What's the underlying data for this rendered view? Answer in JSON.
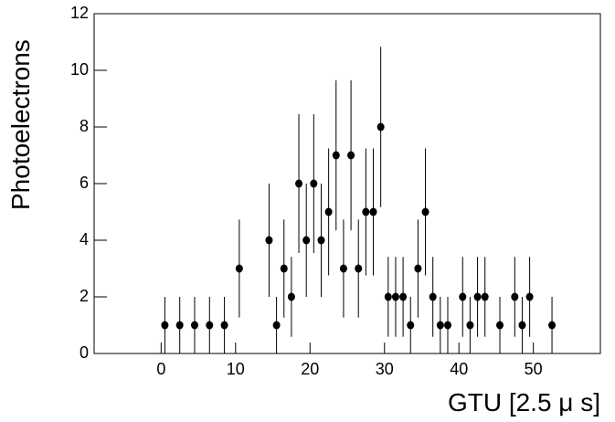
{
  "chart_data": {
    "type": "scatter",
    "x_label": "GTU [2.5 μ s]",
    "y_label": "Photoelectrons",
    "x": [
      0.5,
      2.5,
      4.5,
      6.5,
      8.5,
      10.5,
      14.5,
      15.5,
      16.5,
      17.5,
      18.5,
      19.5,
      20.5,
      21.5,
      22.5,
      23.5,
      24.5,
      25.5,
      26.5,
      27.5,
      28.5,
      29.5,
      30.5,
      31.5,
      32.5,
      33.5,
      34.5,
      35.5,
      36.5,
      37.5,
      38.5,
      40.5,
      41.5,
      42.5,
      43.5,
      45.5,
      47.5,
      48.5,
      49.5,
      52.5
    ],
    "series": [
      {
        "color": "#000000",
        "values": [
          1,
          1,
          1,
          1,
          1,
          3,
          4,
          1,
          3,
          2,
          6,
          4,
          6,
          4,
          5,
          7,
          3,
          7,
          3,
          5,
          5,
          8,
          2,
          2,
          2,
          1,
          3,
          5,
          2,
          1,
          1,
          2,
          1,
          2,
          2,
          1,
          2,
          1,
          2,
          1
        ],
        "errors": [
          1,
          1,
          1,
          1,
          1,
          1.73,
          2,
          1,
          1.73,
          1.41,
          2.45,
          2,
          2.45,
          2,
          2.24,
          2.65,
          1.73,
          2.65,
          1.73,
          2.24,
          2.24,
          2.83,
          1.41,
          1.41,
          1.41,
          1,
          1.73,
          2.24,
          1.41,
          1,
          1,
          1.41,
          1,
          1.41,
          1.41,
          1,
          1.41,
          1,
          1.41,
          1
        ]
      }
    ],
    "xlim": [
      -9,
      59
    ],
    "ylim": [
      0,
      12
    ],
    "xticks": [
      0,
      10,
      20,
      30,
      40,
      50
    ],
    "yticks": [
      0,
      2,
      4,
      6,
      8,
      10,
      12
    ]
  }
}
